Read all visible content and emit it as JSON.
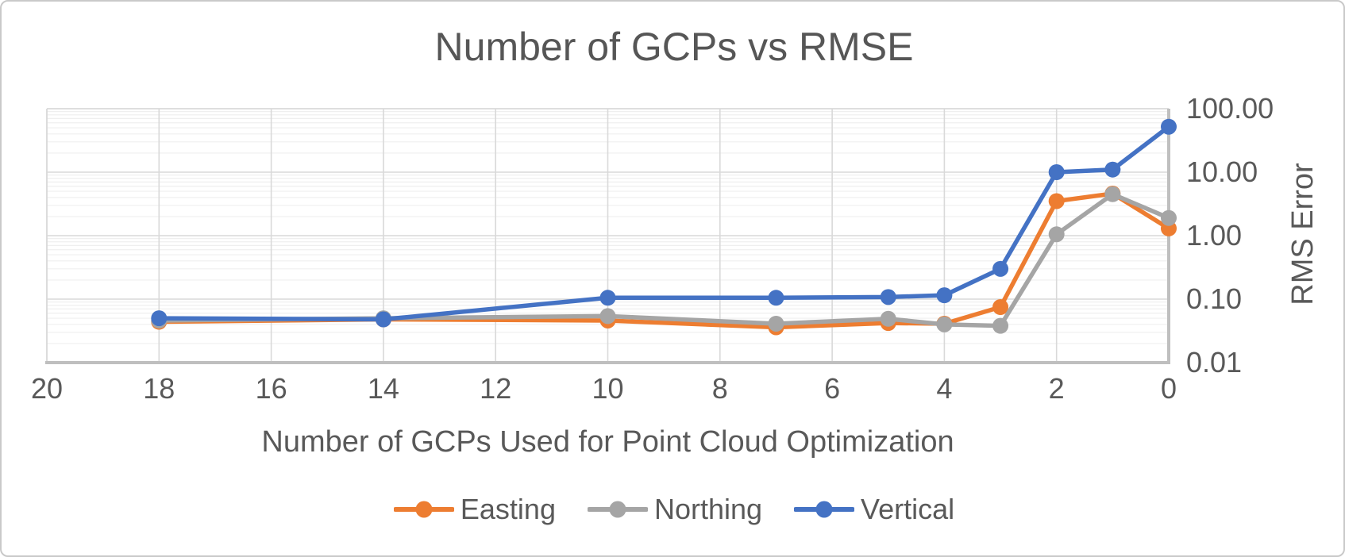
{
  "chart_data": {
    "type": "line",
    "title": "Number of GCPs vs RMSE",
    "xlabel": "Number of GCPs Used for Point Cloud Optimization",
    "ylabel": "RMS Error",
    "x_axis": {
      "min": 0,
      "max": 20,
      "reversed": true,
      "tick_step": 2,
      "tick_labels": [
        "20",
        "18",
        "16",
        "14",
        "12",
        "10",
        "8",
        "6",
        "4",
        "2",
        "0"
      ]
    },
    "y_axis": {
      "scale": "log",
      "min": 0.01,
      "max": 100,
      "tick_labels": [
        "100.00",
        "10.00",
        "1.00",
        "0.10",
        "0.01"
      ],
      "tick_values": [
        100,
        10,
        1,
        0.1,
        0.01
      ]
    },
    "x": [
      18,
      14,
      10,
      7,
      5,
      4,
      3,
      2,
      1,
      0
    ],
    "series": [
      {
        "name": "Easting",
        "color": "#ED7D31",
        "values": [
          0.044,
          0.048,
          0.046,
          0.036,
          0.042,
          0.041,
          0.075,
          3.5,
          4.6,
          1.3
        ]
      },
      {
        "name": "Northing",
        "color": "#A5A5A5",
        "values": [
          0.046,
          0.05,
          0.054,
          0.041,
          0.049,
          0.04,
          0.038,
          1.05,
          4.5,
          1.9
        ]
      },
      {
        "name": "Vertical",
        "color": "#4472C4",
        "values": [
          0.05,
          0.048,
          0.105,
          0.105,
          0.108,
          0.115,
          0.3,
          10.0,
          11.0,
          52.0
        ]
      }
    ],
    "grid": {
      "major": true,
      "minor_log": true
    },
    "legend_position": "bottom"
  },
  "colors": {
    "text": "#595959",
    "grid_major": "#D9D9D9",
    "grid_minor": "#EFEFEF",
    "axis_border": "#BFBFBF",
    "background": "#FFFFFF",
    "frame_border": "#C9C9C9"
  }
}
